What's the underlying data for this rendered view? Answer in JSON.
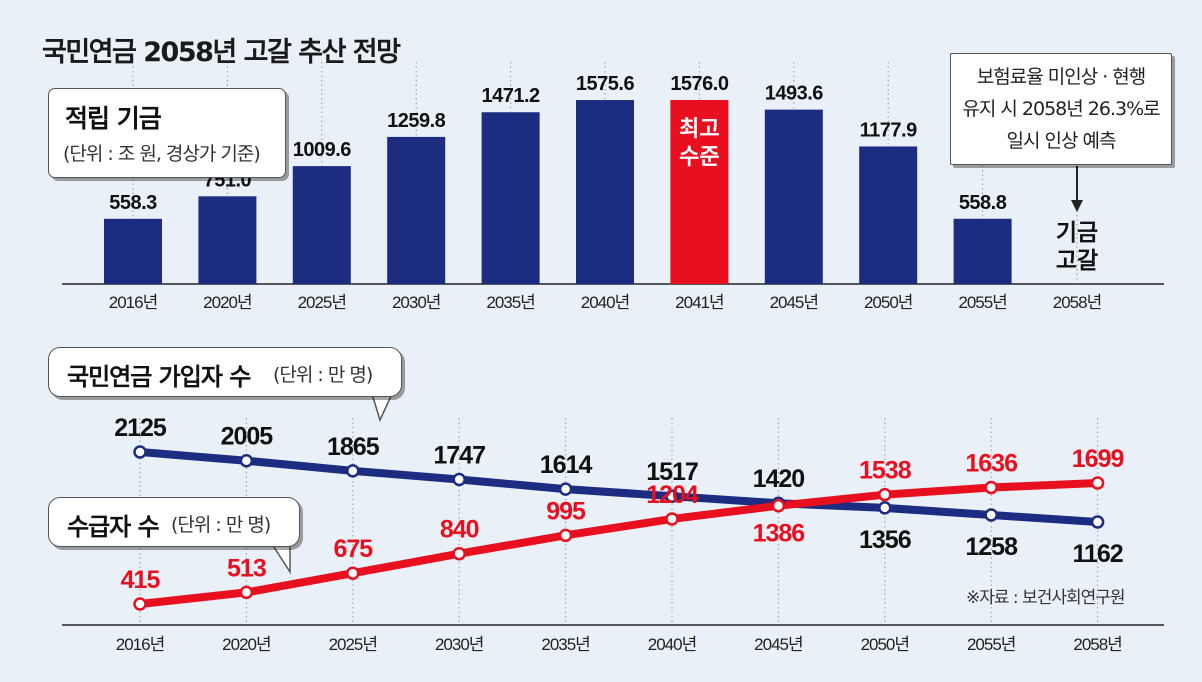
{
  "title": "국민연금 2058년 고갈 추산 전망",
  "fund_panel": {
    "heading": "적립 기금",
    "unit": "(단위 : 조 원, 경상가 기준)",
    "peak_label_line1": "최고",
    "peak_label_line2": "수준",
    "depletion_line1": "기금",
    "depletion_line2": "고갈"
  },
  "note": {
    "line1": "보험료율 미인상 · 현행",
    "line2": "유지 시 2058년 26.3%로",
    "line3": "일시 인상 예측"
  },
  "subscribers_box": {
    "heading": "국민연금 가입자 수",
    "unit": "(단위 : 만 명)"
  },
  "recipients_box": {
    "heading": "수급자 수",
    "unit": "(단위 : 만 명)"
  },
  "source": "※자료 : 보건사회연구원",
  "colors": {
    "bar": "#1c2c80",
    "peak_bar": "#e8101e",
    "subscribers": "#1c2c80",
    "recipients": "#e8101e",
    "background": "#eaf0f8"
  },
  "chart_data": [
    {
      "type": "bar",
      "title": "적립 기금",
      "categories": [
        "2016년",
        "2020년",
        "2025년",
        "2030년",
        "2035년",
        "2040년",
        "2041년",
        "2045년",
        "2050년",
        "2055년",
        "2058년"
      ],
      "values": [
        558.3,
        751.0,
        1009.6,
        1259.8,
        1471.2,
        1575.6,
        1576.0,
        1493.6,
        1177.9,
        558.8,
        null
      ],
      "value_labels": [
        "558.3",
        "751.0",
        "1009.6",
        "1259.8",
        "1471.2",
        "1575.6",
        "1576.0",
        "1493.6",
        "1177.9",
        "558.8",
        ""
      ],
      "highlight_index": 6,
      "ylim": [
        0,
        1700
      ],
      "grid": false
    },
    {
      "type": "line",
      "categories": [
        "2016년",
        "2020년",
        "2025년",
        "2030년",
        "2035년",
        "2040년",
        "2045년",
        "2050년",
        "2055년",
        "2058년"
      ],
      "series": [
        {
          "name": "국민연금 가입자 수",
          "values": [
            2125,
            2005,
            1865,
            1747,
            1614,
            1517,
            1420,
            1356,
            1258,
            1162
          ]
        },
        {
          "name": "수급자 수",
          "values": [
            415,
            513,
            675,
            840,
            995,
            1204,
            1386,
            1538,
            1636,
            1699
          ]
        }
      ],
      "grid": false
    }
  ]
}
